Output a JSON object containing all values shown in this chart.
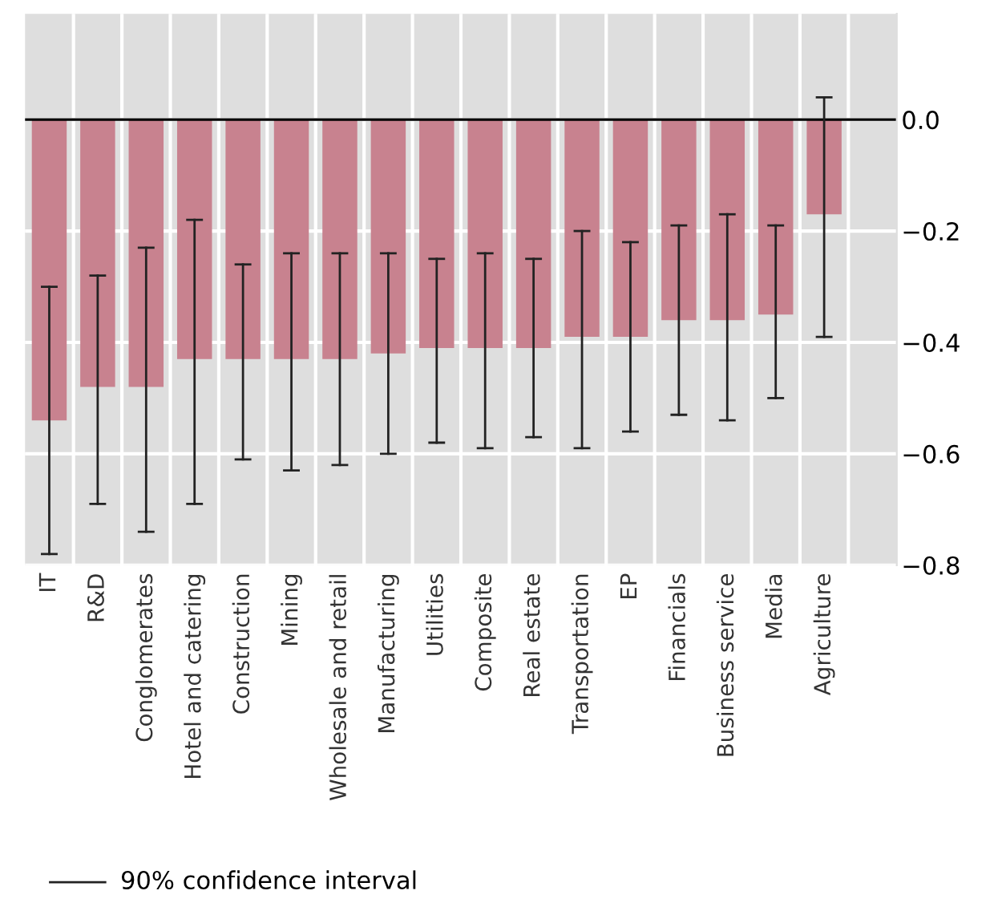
{
  "chart_data": {
    "type": "bar",
    "categories": [
      "IT",
      "R&D",
      "Conglomerates",
      "Hotel and catering",
      "Construction",
      "Mining",
      "Wholesale and retail",
      "Manufacturing",
      "Utilities",
      "Composite",
      "Real estate",
      "Transportation",
      "EP",
      "Financials",
      "Business service",
      "Media",
      "Agriculture"
    ],
    "series": [
      {
        "color": "#c8828f",
        "values": [
          -0.54,
          -0.48,
          -0.48,
          -0.43,
          -0.43,
          -0.43,
          -0.43,
          -0.42,
          -0.41,
          -0.41,
          -0.41,
          -0.39,
          -0.39,
          -0.36,
          -0.36,
          -0.35,
          -0.17
        ],
        "errors": [
          [
            -0.78,
            -0.3
          ],
          [
            -0.69,
            -0.28
          ],
          [
            -0.74,
            -0.23
          ],
          [
            -0.69,
            -0.18
          ],
          [
            -0.61,
            -0.26
          ],
          [
            -0.63,
            -0.24
          ],
          [
            -0.62,
            -0.24
          ],
          [
            -0.6,
            -0.24
          ],
          [
            -0.58,
            -0.25
          ],
          [
            -0.59,
            -0.24
          ],
          [
            -0.57,
            -0.25
          ],
          [
            -0.59,
            -0.2
          ],
          [
            -0.56,
            -0.22
          ],
          [
            -0.53,
            -0.19
          ],
          [
            -0.54,
            -0.17
          ],
          [
            -0.5,
            -0.19
          ],
          [
            -0.39,
            0.04
          ]
        ]
      }
    ],
    "ylim": [
      -0.8,
      0.19
    ],
    "yticks": [
      {
        "value": 0,
        "label": "0.0"
      },
      {
        "value": -0.2,
        "label": "−0.2"
      },
      {
        "value": -0.4,
        "label": "−0.4"
      },
      {
        "value": -0.6,
        "label": "−0.6"
      },
      {
        "value": -0.8,
        "label": "−0.8"
      }
    ],
    "ref_lines": [
      {
        "axis": "y",
        "value": 0,
        "color": "#000000"
      }
    ],
    "annotations": [
      "90% confidence interval"
    ],
    "grid": true
  }
}
